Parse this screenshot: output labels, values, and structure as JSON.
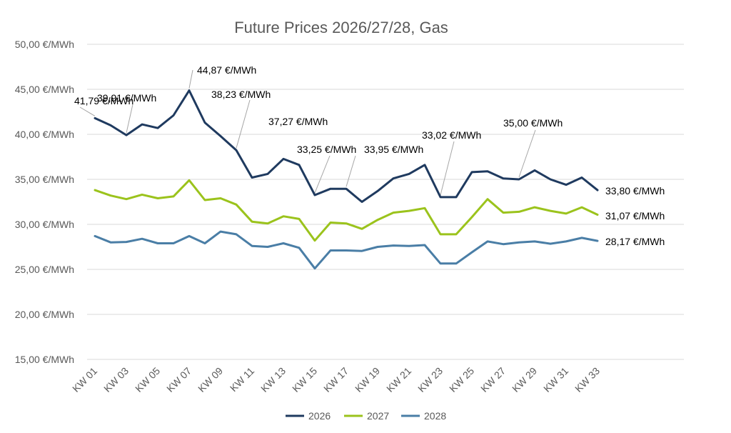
{
  "chart_data": {
    "type": "line",
    "title": "Future Prices 2026/27/28, Gas",
    "ylim": [
      15,
      50
    ],
    "yticks": [
      15,
      20,
      25,
      30,
      35,
      40,
      45,
      50
    ],
    "ytick_labels": [
      "15,00 €/MWh",
      "20,00 €/MWh",
      "25,00 €/MWh",
      "30,00 €/MWh",
      "35,00 €/MWh",
      "40,00 €/MWh",
      "45,00 €/MWh",
      "50,00 €/MWh"
    ],
    "categories": [
      "KW 01",
      "KW 02",
      "KW 03",
      "KW 04",
      "KW 05",
      "KW 06",
      "KW 07",
      "KW 08",
      "KW 09",
      "KW 10",
      "KW 11",
      "KW 12",
      "KW 13",
      "KW 14",
      "KW 15",
      "KW 16",
      "KW 17",
      "KW 18",
      "KW 19",
      "KW 20",
      "KW 21",
      "KW 22",
      "KW 23",
      "KW 24",
      "KW 25",
      "KW 26",
      "KW 27",
      "KW 28",
      "KW 29",
      "KW 30",
      "KW 31",
      "KW 32",
      "KW 33"
    ],
    "xtick_labels": [
      "KW 01",
      "KW 03",
      "KW 05",
      "KW 07",
      "KW 09",
      "KW 11",
      "KW 13",
      "KW 15",
      "KW 17",
      "KW 19",
      "KW 21",
      "KW 23",
      "KW 25",
      "KW 27",
      "KW 29",
      "KW 31",
      "KW 33"
    ],
    "grid": true,
    "legend": "bottom",
    "series": [
      {
        "name": "2026",
        "color": "#1f3a5f",
        "values": [
          41.79,
          41.0,
          39.91,
          41.1,
          40.7,
          42.1,
          44.87,
          41.3,
          39.8,
          38.23,
          35.2,
          35.6,
          37.27,
          36.6,
          33.25,
          33.95,
          33.95,
          32.5,
          33.7,
          35.1,
          35.6,
          36.6,
          33.02,
          33.02,
          35.8,
          35.9,
          35.1,
          35.0,
          36.0,
          35.0,
          34.4,
          35.2,
          33.8
        ]
      },
      {
        "name": "2027",
        "color": "#9bc31c",
        "values": [
          33.8,
          33.2,
          32.8,
          33.3,
          32.9,
          33.1,
          34.9,
          32.7,
          32.9,
          32.2,
          30.3,
          30.1,
          30.9,
          30.6,
          28.2,
          30.2,
          30.1,
          29.5,
          30.5,
          31.3,
          31.5,
          31.8,
          28.9,
          28.9,
          30.8,
          32.8,
          31.3,
          31.4,
          31.9,
          31.5,
          31.2,
          31.9,
          31.07
        ]
      },
      {
        "name": "2028",
        "color": "#4a7ea6",
        "values": [
          28.7,
          28.0,
          28.05,
          28.4,
          27.9,
          27.9,
          28.7,
          27.9,
          29.2,
          28.9,
          27.6,
          27.5,
          27.9,
          27.4,
          25.1,
          27.1,
          27.1,
          27.05,
          27.5,
          27.65,
          27.6,
          27.7,
          25.65,
          25.65,
          26.9,
          28.1,
          27.8,
          28.0,
          28.1,
          27.85,
          28.1,
          28.5,
          28.17
        ]
      }
    ],
    "annotations": [
      {
        "series": 0,
        "index": 0,
        "text": "41,79 €/MWh"
      },
      {
        "series": 0,
        "index": 2,
        "text": "39,91 €/MWh"
      },
      {
        "series": 0,
        "index": 6,
        "text": "44,87 €/MWh"
      },
      {
        "series": 0,
        "index": 9,
        "text": "38,23 €/MWh"
      },
      {
        "series": 0,
        "index": 12,
        "text": "37,27 €/MWh"
      },
      {
        "series": 0,
        "index": 14,
        "text": "33,25 €/MWh"
      },
      {
        "series": 0,
        "index": 16,
        "text": "33,95 €/MWh"
      },
      {
        "series": 0,
        "index": 22,
        "text": "33,02 €/MWh"
      },
      {
        "series": 0,
        "index": 27,
        "text": "35,00 €/MWh"
      },
      {
        "series": 0,
        "index": 32,
        "text": "33,80 €/MWh"
      },
      {
        "series": 1,
        "index": 32,
        "text": "31,07 €/MWh"
      },
      {
        "series": 2,
        "index": 32,
        "text": "28,17 €/MWh"
      }
    ]
  }
}
